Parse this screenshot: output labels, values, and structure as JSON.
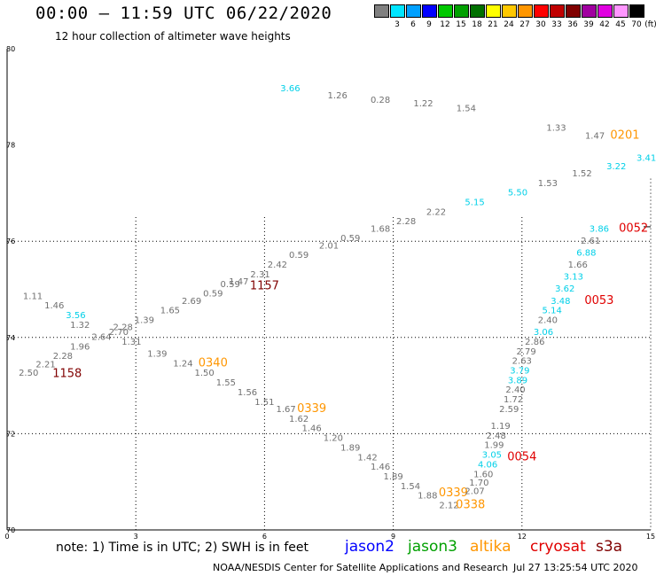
{
  "title": "00:00 – 11:59 UTC 06/22/2020",
  "subtitle": "12 hour collection of altimeter wave heights",
  "scale": {
    "unit": "(ft)",
    "colors": [
      "#808080",
      "#00e5ff",
      "#00a0ff",
      "#0000ff",
      "#00c800",
      "#00a000",
      "#007000",
      "#ffff00",
      "#ffc800",
      "#ff9600",
      "#ff0000",
      "#c00000",
      "#800000",
      "#a000a0",
      "#e000e0",
      "#ff96ff",
      "#000000"
    ],
    "labels": [
      "3",
      "6",
      "9",
      "12",
      "15",
      "18",
      "21",
      "24",
      "27",
      "30",
      "33",
      "36",
      "39",
      "42",
      "45",
      "70"
    ]
  },
  "axes": {
    "x_ticks": [
      "0",
      "3",
      "6",
      "9",
      "12",
      "15"
    ],
    "y_ticks": [
      "80",
      "78",
      "76",
      "74",
      "72",
      "70"
    ]
  },
  "note": "note:  1) Time is in UTC;  2) SWH is in feet",
  "legend": [
    {
      "name": "jason2",
      "color": "#0000ff"
    },
    {
      "name": "jason3",
      "color": "#00a000"
    },
    {
      "name": "altika",
      "color": "#ff9600"
    },
    {
      "name": "cryosat",
      "color": "#e00000"
    },
    {
      "name": "s3a",
      "color": "#800000"
    }
  ],
  "credit": "NOAA/NESDIS Center for Satellite Applications and Research",
  "timestamp": "Jul 27 13:25:54 UTC 2020",
  "chart_data": {
    "type": "scatter",
    "description_units": "x = longitude-like tick values, y = latitude-like tick values; labels are wave heights in feet",
    "xlim": [
      0,
      15
    ],
    "ylim": [
      70,
      80
    ],
    "grid": true,
    "points": [
      {
        "x": 6.6,
        "y": 79.12,
        "label": "3.66",
        "color": "#00d0e8"
      },
      {
        "x": 7.7,
        "y": 78.97,
        "label": "1.26",
        "color": "#707070"
      },
      {
        "x": 8.7,
        "y": 78.88,
        "label": "0.28",
        "color": "#707070"
      },
      {
        "x": 9.7,
        "y": 78.8,
        "label": "1.22",
        "color": "#707070"
      },
      {
        "x": 10.7,
        "y": 78.7,
        "label": "1.54",
        "color": "#707070"
      },
      {
        "x": 12.8,
        "y": 78.3,
        "label": "1.33",
        "color": "#707070"
      },
      {
        "x": 13.7,
        "y": 78.13,
        "label": "1.47",
        "color": "#707070"
      },
      {
        "x": 14.4,
        "y": 78.13,
        "label": "0201",
        "color": "#ff9600",
        "pass": true
      },
      {
        "x": 14.9,
        "y": 77.67,
        "label": "3.41",
        "color": "#00d0e8"
      },
      {
        "x": 14.2,
        "y": 77.5,
        "label": "3.22",
        "color": "#00d0e8"
      },
      {
        "x": 13.4,
        "y": 77.35,
        "label": "1.52",
        "color": "#707070"
      },
      {
        "x": 12.6,
        "y": 77.15,
        "label": "1.53",
        "color": "#707070"
      },
      {
        "x": 11.9,
        "y": 76.95,
        "label": "5.50",
        "color": "#00d0e8"
      },
      {
        "x": 10.9,
        "y": 76.75,
        "label": "5.15",
        "color": "#00d0e8"
      },
      {
        "x": 10.0,
        "y": 76.55,
        "label": "2.22",
        "color": "#707070"
      },
      {
        "x": 9.3,
        "y": 76.35,
        "label": "2.28",
        "color": "#707070"
      },
      {
        "x": 8.7,
        "y": 76.2,
        "label": "1.68",
        "color": "#707070"
      },
      {
        "x": 8.0,
        "y": 76.0,
        "label": "0.59",
        "color": "#707070"
      },
      {
        "x": 7.5,
        "y": 75.85,
        "label": "2.01",
        "color": "#707070"
      },
      {
        "x": 6.8,
        "y": 75.65,
        "label": "0.59",
        "color": "#707070"
      },
      {
        "x": 6.3,
        "y": 75.45,
        "label": "2.42",
        "color": "#707070"
      },
      {
        "x": 5.9,
        "y": 75.25,
        "label": "2.31",
        "color": "#707070"
      },
      {
        "x": 5.4,
        "y": 75.1,
        "label": "1.47",
        "color": "#707070"
      },
      {
        "x": 5.2,
        "y": 75.05,
        "label": "0.59",
        "color": "#707070"
      },
      {
        "x": 6.0,
        "y": 75.0,
        "label": "1157",
        "color": "#800000",
        "pass": true
      },
      {
        "x": 4.8,
        "y": 74.85,
        "label": "0.59",
        "color": "#707070"
      },
      {
        "x": 4.3,
        "y": 74.7,
        "label": "2.69",
        "color": "#707070"
      },
      {
        "x": 3.8,
        "y": 74.5,
        "label": "1.65",
        "color": "#707070"
      },
      {
        "x": 3.2,
        "y": 74.3,
        "label": "1.39",
        "color": "#707070"
      },
      {
        "x": 2.7,
        "y": 74.15,
        "label": "2.28",
        "color": "#707070"
      },
      {
        "x": 2.6,
        "y": 74.05,
        "label": "2.70",
        "color": "#707070"
      },
      {
        "x": 2.2,
        "y": 73.95,
        "label": "2.64",
        "color": "#707070"
      },
      {
        "x": 1.7,
        "y": 74.2,
        "label": "1.32",
        "color": "#707070"
      },
      {
        "x": 1.6,
        "y": 74.4,
        "label": "3.56",
        "color": "#00d0e8"
      },
      {
        "x": 1.1,
        "y": 74.6,
        "label": "1.46",
        "color": "#707070"
      },
      {
        "x": 0.6,
        "y": 74.8,
        "label": "1.11",
        "color": "#707070"
      },
      {
        "x": 1.7,
        "y": 73.75,
        "label": "1.96",
        "color": "#707070"
      },
      {
        "x": 1.3,
        "y": 73.55,
        "label": "2.28",
        "color": "#707070"
      },
      {
        "x": 0.9,
        "y": 73.38,
        "label": "2.21",
        "color": "#707070"
      },
      {
        "x": 0.5,
        "y": 73.2,
        "label": "2.50",
        "color": "#707070"
      },
      {
        "x": 1.4,
        "y": 73.18,
        "label": "1158",
        "color": "#800000",
        "pass": true
      },
      {
        "x": 2.9,
        "y": 73.85,
        "label": "1.31",
        "color": "#707070"
      },
      {
        "x": 3.5,
        "y": 73.6,
        "label": "1.39",
        "color": "#707070"
      },
      {
        "x": 4.1,
        "y": 73.4,
        "label": "1.24",
        "color": "#707070"
      },
      {
        "x": 4.8,
        "y": 73.4,
        "label": "0340",
        "color": "#ff9600",
        "pass": true
      },
      {
        "x": 4.6,
        "y": 73.2,
        "label": "1.50",
        "color": "#707070"
      },
      {
        "x": 5.1,
        "y": 73.0,
        "label": "1.55",
        "color": "#707070"
      },
      {
        "x": 5.6,
        "y": 72.8,
        "label": "1.56",
        "color": "#707070"
      },
      {
        "x": 6.0,
        "y": 72.6,
        "label": "1.51",
        "color": "#707070"
      },
      {
        "x": 6.5,
        "y": 72.45,
        "label": "1.67",
        "color": "#707070"
      },
      {
        "x": 7.1,
        "y": 72.45,
        "label": "0339",
        "color": "#ff9600",
        "pass": true
      },
      {
        "x": 6.8,
        "y": 72.25,
        "label": "1.62",
        "color": "#707070"
      },
      {
        "x": 7.1,
        "y": 72.05,
        "label": "1.46",
        "color": "#707070"
      },
      {
        "x": 7.6,
        "y": 71.85,
        "label": "1.20",
        "color": "#707070"
      },
      {
        "x": 8.0,
        "y": 71.65,
        "label": "1.89",
        "color": "#707070"
      },
      {
        "x": 8.4,
        "y": 71.45,
        "label": "1.42",
        "color": "#707070"
      },
      {
        "x": 8.7,
        "y": 71.25,
        "label": "1.46",
        "color": "#707070"
      },
      {
        "x": 9.0,
        "y": 71.05,
        "label": "1.89",
        "color": "#707070"
      },
      {
        "x": 9.4,
        "y": 70.85,
        "label": "1.54",
        "color": "#707070"
      },
      {
        "x": 9.8,
        "y": 70.65,
        "label": "1.88",
        "color": "#707070"
      },
      {
        "x": 10.3,
        "y": 70.45,
        "label": "2.12",
        "color": "#707070"
      },
      {
        "x": 10.4,
        "y": 70.7,
        "label": "0339",
        "color": "#ff9600",
        "pass": true
      },
      {
        "x": 10.8,
        "y": 70.45,
        "label": "0338",
        "color": "#ff9600",
        "pass": true
      },
      {
        "x": 10.9,
        "y": 70.75,
        "label": "2.07",
        "color": "#707070"
      },
      {
        "x": 11.0,
        "y": 70.92,
        "label": "1.70",
        "color": "#707070"
      },
      {
        "x": 11.1,
        "y": 71.1,
        "label": "1.60",
        "color": "#707070"
      },
      {
        "x": 11.2,
        "y": 71.3,
        "label": "4.06",
        "color": "#00d0e8"
      },
      {
        "x": 11.3,
        "y": 71.5,
        "label": "3.05",
        "color": "#00d0e8"
      },
      {
        "x": 11.35,
        "y": 71.7,
        "label": "1.99",
        "color": "#707070"
      },
      {
        "x": 11.4,
        "y": 71.9,
        "label": "2.48",
        "color": "#707070"
      },
      {
        "x": 11.5,
        "y": 72.1,
        "label": "1.19",
        "color": "#707070"
      },
      {
        "x": 12.0,
        "y": 71.45,
        "label": "0054",
        "color": "#e00000",
        "pass": true
      },
      {
        "x": 11.7,
        "y": 72.45,
        "label": "2.59",
        "color": "#707070"
      },
      {
        "x": 11.8,
        "y": 72.65,
        "label": "1.72",
        "color": "#707070"
      },
      {
        "x": 11.85,
        "y": 72.85,
        "label": "2.40",
        "color": "#707070"
      },
      {
        "x": 11.9,
        "y": 73.05,
        "label": "3.89",
        "color": "#00d0e8"
      },
      {
        "x": 11.95,
        "y": 73.25,
        "label": "3.79",
        "color": "#00d0e8"
      },
      {
        "x": 12.0,
        "y": 73.45,
        "label": "2.63",
        "color": "#707070"
      },
      {
        "x": 12.1,
        "y": 73.65,
        "label": "2.79",
        "color": "#707070"
      },
      {
        "x": 12.3,
        "y": 73.85,
        "label": "2.86",
        "color": "#707070"
      },
      {
        "x": 12.5,
        "y": 74.05,
        "label": "3.06",
        "color": "#00d0e8"
      },
      {
        "x": 12.6,
        "y": 74.3,
        "label": "2.40",
        "color": "#707070"
      },
      {
        "x": 12.7,
        "y": 74.5,
        "label": "5.14",
        "color": "#00d0e8"
      },
      {
        "x": 12.9,
        "y": 74.7,
        "label": "3.48",
        "color": "#00d0e8"
      },
      {
        "x": 13.8,
        "y": 74.7,
        "label": "0053",
        "color": "#e00000",
        "pass": true
      },
      {
        "x": 13.0,
        "y": 74.95,
        "label": "3.62",
        "color": "#00d0e8"
      },
      {
        "x": 13.2,
        "y": 75.2,
        "label": "3.13",
        "color": "#00d0e8"
      },
      {
        "x": 13.3,
        "y": 75.45,
        "label": "1.66",
        "color": "#707070"
      },
      {
        "x": 13.5,
        "y": 75.7,
        "label": "6.88",
        "color": "#00d0e8"
      },
      {
        "x": 13.6,
        "y": 75.95,
        "label": "2.61",
        "color": "#707070"
      },
      {
        "x": 13.8,
        "y": 76.2,
        "label": "3.86",
        "color": "#00d0e8"
      },
      {
        "x": 14.6,
        "y": 76.2,
        "label": "0052",
        "color": "#e00000",
        "pass": true
      }
    ]
  }
}
